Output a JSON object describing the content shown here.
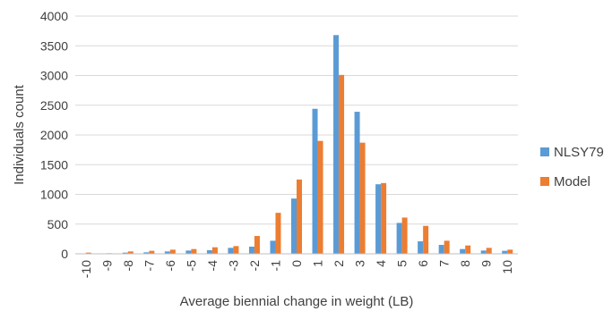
{
  "chart_data": {
    "type": "bar",
    "title": "",
    "xlabel": "Average biennial change in weight (LB)",
    "ylabel": "Individuals count",
    "ylim": [
      0,
      4000
    ],
    "yticks": [
      "0",
      "500",
      "1000",
      "1500",
      "2000",
      "2500",
      "3000",
      "3500",
      "4000"
    ],
    "grid": "horizontal",
    "legend_position": "right",
    "categories": [
      "-10",
      "-9",
      "-8",
      "-7",
      "-6",
      "-5",
      "-4",
      "-3",
      "-2",
      "-1",
      "0",
      "1",
      "2",
      "3",
      "4",
      "5",
      "6",
      "7",
      "8",
      "9",
      "10"
    ],
    "series": [
      {
        "name": "NLSY79",
        "color": "#5b9bd5",
        "values": [
          5,
          3,
          20,
          25,
          40,
          55,
          60,
          100,
          120,
          220,
          930,
          2440,
          3680,
          2390,
          1170,
          520,
          210,
          150,
          80,
          55,
          50
        ]
      },
      {
        "name": "Model",
        "color": "#ed7d31",
        "values": [
          20,
          10,
          40,
          50,
          70,
          80,
          110,
          130,
          300,
          690,
          1250,
          1900,
          3010,
          1870,
          1190,
          610,
          470,
          220,
          140,
          100,
          70
        ]
      }
    ]
  }
}
